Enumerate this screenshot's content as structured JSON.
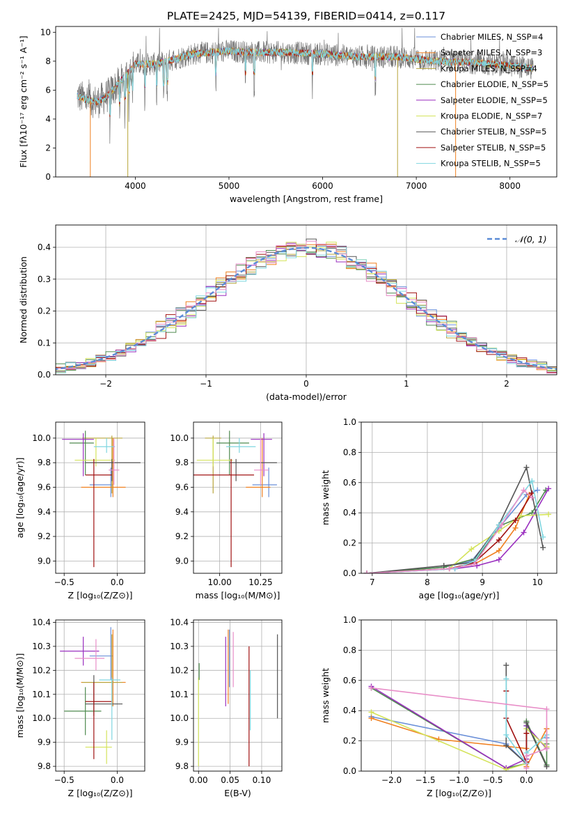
{
  "title": "PLATE=2425, MJD=54139, FIBERID=0414, z=0.117",
  "colors": [
    "#6a8fd8",
    "#f07f1e",
    "#b7a43a",
    "#4f8a4f",
    "#9a2fbf",
    "#d4e35a",
    "#555555",
    "#a01010",
    "#7fd6e0",
    "#e88ec8"
  ],
  "chart_data": [
    {
      "id": "spectrum",
      "type": "line",
      "xlabel": "wavelength [Angstrom, rest frame]",
      "ylabel": "Flux [fλ10⁻¹⁷ erg cm⁻² s⁻¹ A⁻¹]",
      "xlim": [
        3150,
        8500
      ],
      "ylim": [
        0,
        10.4
      ],
      "xticks": [
        4000,
        5000,
        6000,
        7000,
        8000
      ],
      "yticks": [
        0,
        2,
        4,
        6,
        8,
        10
      ],
      "grid": false,
      "legend_position": "right",
      "series": [
        {
          "name": "Chabrier MILES, N_SSP=4"
        },
        {
          "name": "Salpeter MILES, N_SSP=3"
        },
        {
          "name": "Kroupa MILES, N_SSP=4"
        },
        {
          "name": "Chabrier ELODIE, N_SSP=5"
        },
        {
          "name": "Salpeter ELODIE, N_SSP=5"
        },
        {
          "name": "Kroupa ELODIE, N_SSP=7"
        },
        {
          "name": "Chabrier STELIB, N_SSP=5"
        },
        {
          "name": "Salpeter STELIB, N_SSP=5"
        },
        {
          "name": "Kroupa STELIB, N_SSP=5"
        }
      ],
      "continuum": {
        "x": [
          3380,
          3500,
          3600,
          3700,
          3800,
          3900,
          4000,
          4200,
          4400,
          4600,
          4800,
          5000,
          5300,
          5600,
          6000,
          6400,
          6800,
          7200,
          7600,
          8000,
          8250
        ],
        "y": [
          5.6,
          5.3,
          5.2,
          5.6,
          6.3,
          7.0,
          7.8,
          7.8,
          8.1,
          8.5,
          8.6,
          8.7,
          8.6,
          8.6,
          8.5,
          8.3,
          8.3,
          8.0,
          7.9,
          7.7,
          7.5
        ]
      },
      "dips": [
        {
          "x": 3520,
          "y": 0.0
        },
        {
          "x": 3920,
          "y": 0.0
        },
        {
          "x": 6800,
          "y": 0.0
        },
        {
          "x": 7420,
          "y": 0.0
        }
      ]
    },
    {
      "id": "residuals",
      "type": "line",
      "xlabel": "(data-model)/error",
      "ylabel": "Normed distribution",
      "xlim": [
        -2.5,
        2.5
      ],
      "ylim": [
        0,
        0.47
      ],
      "xticks": [
        -2,
        -1,
        0,
        1,
        2
      ],
      "yticks": [
        0.0,
        0.1,
        0.2,
        0.3,
        0.4
      ],
      "grid": true,
      "legend": [
        {
          "name": "𝒩(0, 1)",
          "color": "#5b8bd6",
          "dash": true
        }
      ],
      "gaussian": {
        "mean": 0,
        "sigma": 1
      }
    },
    {
      "id": "age_vs_Z",
      "type": "errorbar",
      "xlabel": "Z [log₁₀(Z/Z⊙)]",
      "ylabel": "age  [log₁₀(age/yr)]",
      "xlim": [
        -0.58,
        0.26
      ],
      "ylim": [
        8.9,
        10.13
      ],
      "xticks": [
        -0.5,
        0.0
      ],
      "yticks": [
        9.0,
        9.2,
        9.4,
        9.6,
        9.8,
        10.0
      ],
      "grid": true,
      "points": [
        {
          "x": -0.06,
          "y": 9.62,
          "xerr": [
            0.2,
            0.02
          ],
          "yerr": [
            0.1,
            0.14
          ],
          "c": 0
        },
        {
          "x": -0.04,
          "y": 9.6,
          "xerr": [
            0.3,
            0.12
          ],
          "yerr": [
            0.08,
            0.4
          ],
          "c": 1
        },
        {
          "x": -0.05,
          "y": 10.0,
          "xerr": [
            0.28,
            0.1
          ],
          "yerr": [
            0.45,
            0.02
          ],
          "c": 2
        },
        {
          "x": -0.3,
          "y": 9.96,
          "xerr": [
            0.15,
            0.08
          ],
          "yerr": [
            0.26,
            0.1
          ],
          "c": 3
        },
        {
          "x": -0.32,
          "y": 9.99,
          "xerr": [
            0.2,
            0.1
          ],
          "yerr": [
            0.3,
            0.05
          ],
          "c": 4
        },
        {
          "x": -0.2,
          "y": 9.82,
          "xerr": [
            0.2,
            0.18
          ],
          "yerr": [
            0.05,
            0.18
          ],
          "c": 5
        },
        {
          "x": -0.05,
          "y": 9.8,
          "xerr": [
            0.25,
            0.27
          ],
          "yerr": [
            0.15,
            0.03
          ],
          "c": 6
        },
        {
          "x": -0.22,
          "y": 9.7,
          "xerr": [
            0.08,
            0.17
          ],
          "yerr": [
            0.75,
            0.13
          ],
          "c": 7
        },
        {
          "x": -0.1,
          "y": 9.93,
          "xerr": [
            0.12,
            0.08
          ],
          "yerr": [
            0.05,
            0.07
          ],
          "c": 8
        },
        {
          "x": -0.03,
          "y": 9.74,
          "xerr": [
            0.05,
            0.05
          ],
          "yerr": [
            0.12,
            0.26
          ],
          "c": 9
        }
      ]
    },
    {
      "id": "age_vs_mass",
      "type": "errorbar",
      "xlabel": "mass [log₁₀(M/M⊙)]",
      "ylabel": "",
      "xlim": [
        9.84,
        10.38
      ],
      "ylim": [
        8.9,
        10.13
      ],
      "xticks": [
        10.0,
        10.25
      ],
      "yticks": [
        9.0,
        9.2,
        9.4,
        9.6,
        9.8,
        10.0
      ],
      "grid": true,
      "points": [
        {
          "x": 10.3,
          "y": 9.62,
          "xerr": [
            0.1,
            0.05
          ],
          "yerr": [
            0.1,
            0.14
          ],
          "c": 0
        },
        {
          "x": 10.26,
          "y": 9.6,
          "xerr": [
            0.1,
            0.05
          ],
          "yerr": [
            0.08,
            0.4
          ],
          "c": 1
        },
        {
          "x": 9.96,
          "y": 10.0,
          "xerr": [
            0.05,
            0.05
          ],
          "yerr": [
            0.45,
            0.02
          ],
          "c": 2
        },
        {
          "x": 10.06,
          "y": 9.96,
          "xerr": [
            0.08,
            0.12
          ],
          "yerr": [
            0.26,
            0.1
          ],
          "c": 3
        },
        {
          "x": 10.27,
          "y": 9.99,
          "xerr": [
            0.08,
            0.05
          ],
          "yerr": [
            0.3,
            0.05
          ],
          "c": 4
        },
        {
          "x": 9.96,
          "y": 9.82,
          "xerr": [
            0.1,
            0.12
          ],
          "yerr": [
            0.05,
            0.18
          ],
          "c": 5
        },
        {
          "x": 10.1,
          "y": 9.8,
          "xerr": [
            0.04,
            0.25
          ],
          "yerr": [
            0.15,
            0.03
          ],
          "c": 6
        },
        {
          "x": 10.07,
          "y": 9.7,
          "xerr": [
            0.23,
            0.14
          ],
          "yerr": [
            0.75,
            0.13
          ],
          "c": 7
        },
        {
          "x": 10.12,
          "y": 9.93,
          "xerr": [
            0.08,
            0.1
          ],
          "yerr": [
            0.05,
            0.07
          ],
          "c": 8
        },
        {
          "x": 10.25,
          "y": 9.74,
          "xerr": [
            0.04,
            0.05
          ],
          "yerr": [
            0.12,
            0.26
          ],
          "c": 9
        }
      ]
    },
    {
      "id": "weight_vs_age",
      "type": "line",
      "xlabel": "age  [log₁₀(age/yr)]",
      "ylabel": "mass weight",
      "xlim": [
        6.8,
        10.35
      ],
      "ylim": [
        0,
        1.0
      ],
      "xticks": [
        7,
        8,
        9,
        10
      ],
      "yticks": [
        0.0,
        0.2,
        0.4,
        0.6,
        0.8,
        1.0
      ],
      "grid": true,
      "series": [
        {
          "c": 0,
          "x": [
            6.9,
            8.3,
            8.8,
            9.3,
            9.8,
            10.0
          ],
          "y": [
            0.0,
            0.04,
            0.08,
            0.3,
            0.52,
            0.55
          ]
        },
        {
          "c": 1,
          "x": [
            6.9,
            8.4,
            8.85,
            9.3,
            9.6,
            9.85
          ],
          "y": [
            0.0,
            0.03,
            0.06,
            0.15,
            0.3,
            0.52
          ]
        },
        {
          "c": 3,
          "x": [
            6.9,
            8.3,
            8.9,
            9.35,
            9.9,
            10.15
          ],
          "y": [
            0.0,
            0.04,
            0.1,
            0.32,
            0.4,
            0.55
          ]
        },
        {
          "c": 4,
          "x": [
            6.9,
            8.5,
            8.9,
            9.3,
            9.75,
            10.2
          ],
          "y": [
            0.0,
            0.03,
            0.05,
            0.09,
            0.27,
            0.56
          ]
        },
        {
          "c": 5,
          "x": [
            6.9,
            8.4,
            8.8,
            9.3,
            9.7,
            10.2
          ],
          "y": [
            0.0,
            0.03,
            0.16,
            0.28,
            0.38,
            0.39
          ]
        },
        {
          "c": 6,
          "x": [
            6.9,
            8.3,
            8.8,
            9.3,
            9.8,
            10.1
          ],
          "y": [
            0.0,
            0.05,
            0.07,
            0.32,
            0.7,
            0.17
          ]
        },
        {
          "c": 7,
          "x": [
            6.9,
            8.4,
            8.85,
            9.3,
            9.6,
            9.9
          ],
          "y": [
            0.0,
            0.03,
            0.07,
            0.22,
            0.35,
            0.53
          ]
        },
        {
          "c": 8,
          "x": [
            6.9,
            8.5,
            8.85,
            9.3,
            9.9,
            10.1
          ],
          "y": [
            0.0,
            0.03,
            0.08,
            0.32,
            0.61,
            0.24
          ]
        },
        {
          "c": 9,
          "x": [
            6.9,
            8.4,
            8.85,
            9.35,
            9.75,
            9.9
          ],
          "y": [
            0.0,
            0.03,
            0.06,
            0.32,
            0.55,
            0.5
          ]
        }
      ]
    },
    {
      "id": "mass_vs_Z",
      "type": "errorbar",
      "xlabel": "Z [log₁₀(Z/Z⊙)]",
      "ylabel": "mass [log₁₀(M/M⊙)]",
      "xlim": [
        -0.58,
        0.26
      ],
      "ylim": [
        9.78,
        10.41
      ],
      "xticks": [
        -0.5,
        0.0
      ],
      "yticks": [
        9.8,
        9.9,
        10.0,
        10.1,
        10.2,
        10.3,
        10.4
      ],
      "grid": true,
      "points": [
        {
          "x": -0.06,
          "y": 10.26,
          "xerr": [
            0.2,
            0.02
          ],
          "yerr": [
            0.1,
            0.12
          ],
          "c": 0
        },
        {
          "x": -0.04,
          "y": 10.15,
          "xerr": [
            0.3,
            0.12
          ],
          "yerr": [
            0.1,
            0.22
          ],
          "c": 1
        },
        {
          "x": -0.05,
          "y": 10.15,
          "xerr": [
            0.28,
            0.1
          ],
          "yerr": [
            0.1,
            0.2
          ],
          "c": 2
        },
        {
          "x": -0.3,
          "y": 10.03,
          "xerr": [
            0.2,
            0.15
          ],
          "yerr": [
            0.1,
            0.1
          ],
          "c": 3
        },
        {
          "x": -0.32,
          "y": 10.28,
          "xerr": [
            0.22,
            0.15
          ],
          "yerr": [
            0.06,
            0.06
          ],
          "c": 4
        },
        {
          "x": -0.1,
          "y": 9.88,
          "xerr": [
            0.2,
            0.05
          ],
          "yerr": [
            0.07,
            0.07
          ],
          "c": 5
        },
        {
          "x": -0.22,
          "y": 10.06,
          "xerr": [
            0.08,
            0.27
          ],
          "yerr": [
            0.05,
            0.12
          ],
          "c": 6
        },
        {
          "x": -0.22,
          "y": 10.07,
          "xerr": [
            0.08,
            0.17
          ],
          "yerr": [
            0.24,
            0.08
          ],
          "c": 7
        },
        {
          "x": -0.05,
          "y": 10.16,
          "xerr": [
            0.12,
            0.08
          ],
          "yerr": [
            0.25,
            0.01
          ],
          "c": 8
        },
        {
          "x": -0.2,
          "y": 10.25,
          "xerr": [
            0.2,
            0.08
          ],
          "yerr": [
            0.05,
            0.08
          ],
          "c": 9
        }
      ]
    },
    {
      "id": "mass_vs_ebv",
      "type": "errorbar",
      "xlabel": "E(B-V)",
      "ylabel": "",
      "xlim": [
        -0.008,
        0.132
      ],
      "ylim": [
        9.78,
        10.41
      ],
      "xticks": [
        0.0,
        0.05,
        0.1
      ],
      "yticks": [
        9.8,
        9.9,
        10.0,
        10.1,
        10.2,
        10.3,
        10.4
      ],
      "grid": true,
      "points": [
        {
          "x": 0.0,
          "y": 10.05,
          "xerr": [
            0,
            0
          ],
          "yerr": [
            0.25,
            0.12
          ],
          "c": 5
        },
        {
          "x": 0.001,
          "y": 10.2,
          "xerr": [
            0,
            0
          ],
          "yerr": [
            0.04,
            0.03
          ],
          "c": 3
        },
        {
          "x": 0.043,
          "y": 10.2,
          "xerr": [
            0,
            0
          ],
          "yerr": [
            0.15,
            0.14
          ],
          "c": 4
        },
        {
          "x": 0.047,
          "y": 10.2,
          "xerr": [
            0,
            0
          ],
          "yerr": [
            0.14,
            0.17
          ],
          "c": 1
        },
        {
          "x": 0.049,
          "y": 10.25,
          "xerr": [
            0,
            0
          ],
          "yerr": [
            0.12,
            0.12
          ],
          "c": 0
        },
        {
          "x": 0.055,
          "y": 10.25,
          "xerr": [
            0,
            0
          ],
          "yerr": [
            0.12,
            0.11
          ],
          "c": 9
        },
        {
          "x": 0.08,
          "y": 10.1,
          "xerr": [
            0,
            0
          ],
          "yerr": [
            0.3,
            0.2
          ],
          "c": 7
        },
        {
          "x": 0.082,
          "y": 10.15,
          "xerr": [
            0,
            0
          ],
          "yerr": [
            0.2,
            0.05
          ],
          "c": 8
        },
        {
          "x": 0.125,
          "y": 10.17,
          "xerr": [
            0,
            0
          ],
          "yerr": [
            0.17,
            0.18
          ],
          "c": 6
        }
      ]
    },
    {
      "id": "weight_vs_Z",
      "type": "line",
      "xlabel": "Z [log₁₀(Z/Z⊙)]",
      "ylabel": "mass weight",
      "xlim": [
        -2.45,
        0.45
      ],
      "ylim": [
        0,
        1.0
      ],
      "xticks": [
        -2.0,
        -1.5,
        -1.0,
        -0.5,
        0.0
      ],
      "yticks": [
        0.0,
        0.2,
        0.4,
        0.6,
        0.8,
        1.0
      ],
      "grid": true,
      "series": [
        {
          "c": 0,
          "x": [
            -2.3,
            -0.3,
            0.0,
            0.0,
            0.3,
            0.3
          ],
          "y": [
            0.36,
            0.18,
            0.05,
            0.3,
            0.15,
            0.22
          ]
        },
        {
          "c": 1,
          "x": [
            -2.3,
            -1.3,
            0.0,
            0.0,
            0.3,
            0.3
          ],
          "y": [
            0.35,
            0.21,
            0.15,
            0.03,
            0.28,
            0.16
          ]
        },
        {
          "c": 3,
          "x": [
            -2.3,
            -0.3,
            0.0,
            0.0,
            0.3,
            0.3
          ],
          "y": [
            0.55,
            0.02,
            0.05,
            0.33,
            0.04,
            0.18
          ]
        },
        {
          "c": 4,
          "x": [
            -2.3,
            -0.3,
            0.0,
            0.0,
            0.3
          ],
          "y": [
            0.56,
            0.02,
            0.08,
            0.3,
            0.15
          ]
        },
        {
          "c": 5,
          "x": [
            -2.3,
            -0.3,
            0.0,
            0.0,
            0.3
          ],
          "y": [
            0.39,
            0.01,
            0.05,
            0.28,
            0.16
          ]
        },
        {
          "c": 6,
          "x": [
            -0.3,
            -0.3,
            0.0,
            0.0,
            0.3
          ],
          "y": [
            0.7,
            0.17,
            0.05,
            0.32,
            0.03
          ]
        },
        {
          "c": 7,
          "x": [
            -0.3,
            -0.3,
            0.0,
            0.0
          ],
          "y": [
            0.53,
            0.35,
            0.06,
            0.25
          ]
        },
        {
          "c": 8,
          "x": [
            -0.3,
            -0.3,
            0.0,
            0.0,
            0.3
          ],
          "y": [
            0.61,
            0.24,
            0.05,
            0.12,
            0.24
          ]
        },
        {
          "c": 9,
          "x": [
            -2.3,
            0.3,
            0.3,
            0.0,
            0.0
          ],
          "y": [
            0.55,
            0.41,
            0.15,
            0.1,
            0.02
          ]
        }
      ]
    }
  ]
}
